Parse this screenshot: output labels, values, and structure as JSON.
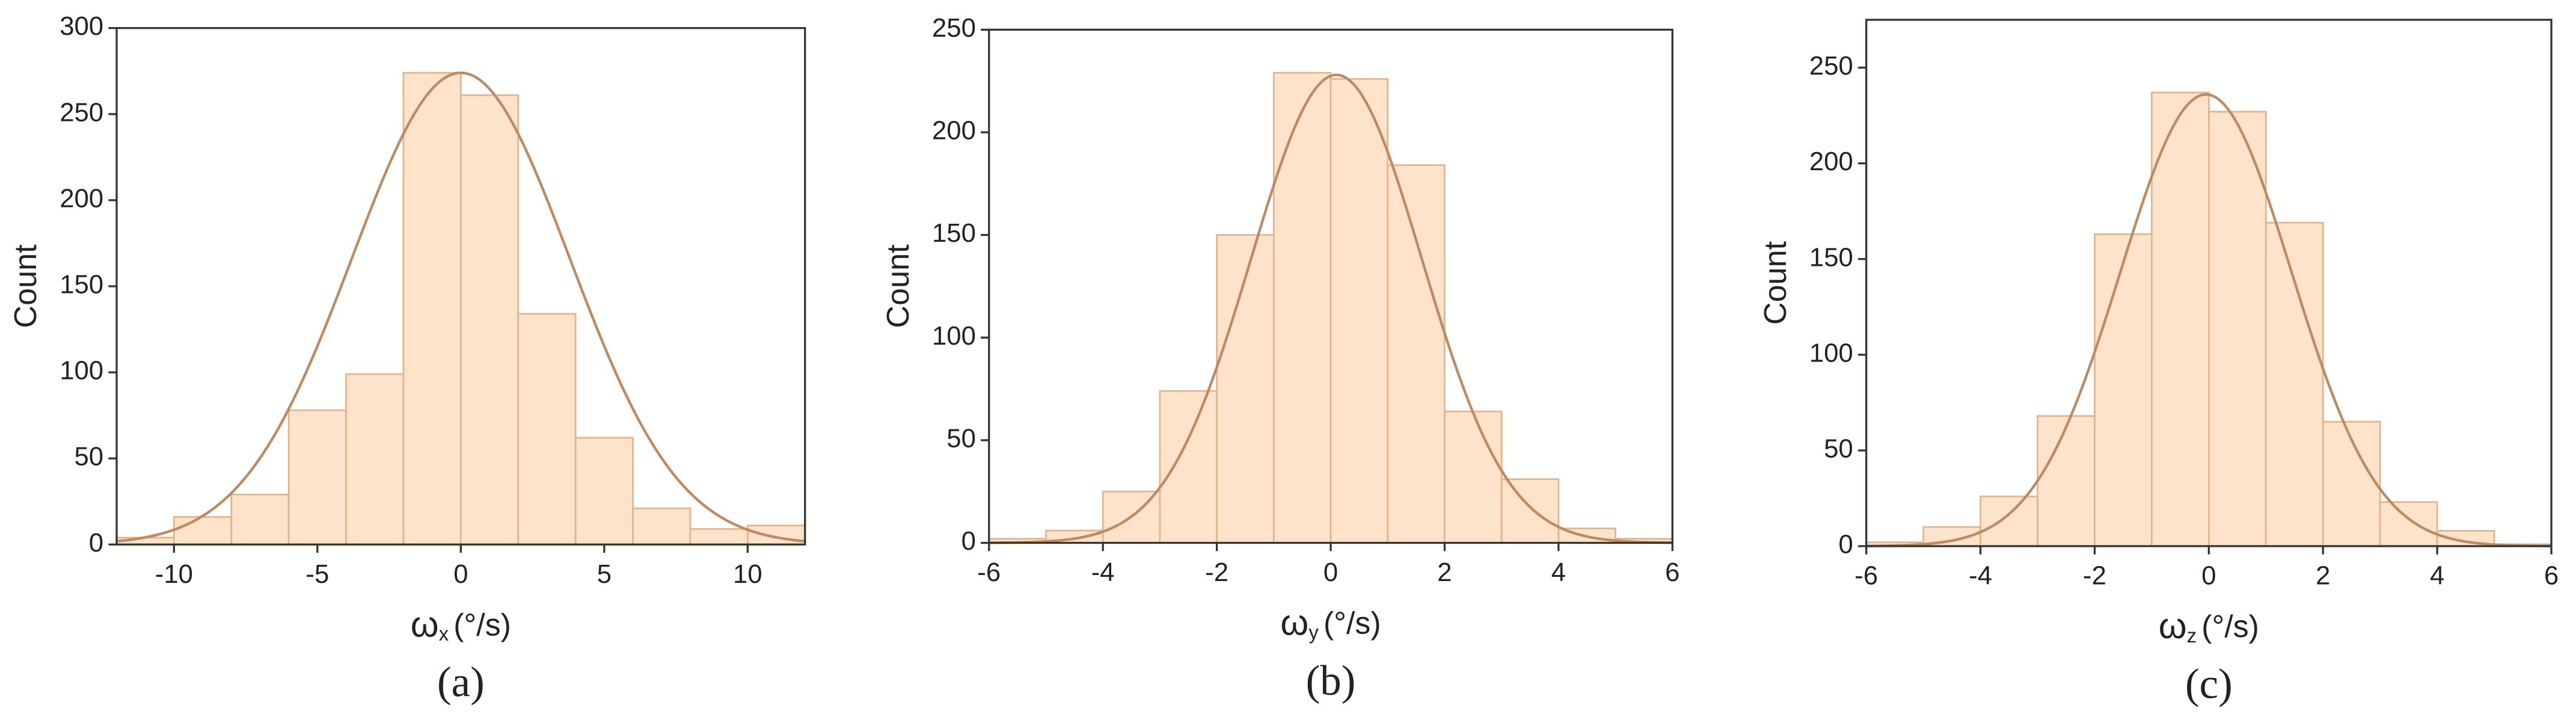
{
  "chart_data": [
    {
      "type": "histogram",
      "caption": "(a)",
      "y_label": "Count",
      "x_label": "ω",
      "x_label_sub": "x",
      "x_label_unit": "(°/s)",
      "bins": [
        -12,
        -10,
        -8,
        -6,
        -4,
        -2,
        0,
        2,
        4,
        6,
        8,
        10,
        12
      ],
      "values": [
        4,
        16,
        29,
        78,
        99,
        274,
        261,
        134,
        62,
        21,
        9,
        11
      ],
      "color": "#fde3c9",
      "edge_color": "#e3b48c",
      "fit": {
        "type": "gaussian",
        "mean": 0,
        "sd": 3.8,
        "peak": 274,
        "color": "#c08a60"
      },
      "xlim": [
        -12,
        12
      ],
      "xticks": [
        -10,
        -5,
        0,
        5,
        10
      ],
      "ylim": [
        0,
        300
      ],
      "yticks": [
        0,
        50,
        100,
        150,
        200,
        250,
        300
      ]
    },
    {
      "type": "histogram",
      "caption": "(b)",
      "y_label": "Count",
      "x_label": "ω",
      "x_label_sub": "y",
      "x_label_unit": "(°/s)",
      "bins": [
        -6,
        -5,
        -4,
        -3,
        -2,
        -1,
        0,
        1,
        2,
        3,
        4,
        5,
        6
      ],
      "values": [
        2,
        6,
        25,
        74,
        150,
        229,
        226,
        184,
        64,
        31,
        7,
        2
      ],
      "color": "#fde3c9",
      "edge_color": "#e3b48c",
      "fit": {
        "type": "gaussian",
        "mean": 0.1,
        "sd": 1.5,
        "peak": 228,
        "color": "#c08a60"
      },
      "xlim": [
        -6,
        6
      ],
      "xticks": [
        -6,
        -4,
        -2,
        0,
        2,
        4,
        6
      ],
      "ylim": [
        0,
        250
      ],
      "yticks": [
        0,
        50,
        100,
        150,
        200,
        250
      ]
    },
    {
      "type": "histogram",
      "caption": "(c)",
      "y_label": "Count",
      "x_label": "ω",
      "x_label_sub": "z",
      "x_label_unit": "(°/s)",
      "bins": [
        -6,
        -5,
        -4,
        -3,
        -2,
        -1,
        0,
        1,
        2,
        3,
        4,
        5,
        6
      ],
      "values": [
        2,
        10,
        26,
        68,
        163,
        237,
        227,
        169,
        65,
        23,
        8,
        1
      ],
      "color": "#fde3c9",
      "edge_color": "#e3b48c",
      "fit": {
        "type": "gaussian",
        "mean": -0.05,
        "sd": 1.5,
        "peak": 236,
        "color": "#c08a60"
      },
      "xlim": [
        -6,
        6
      ],
      "xticks": [
        -6,
        -4,
        -2,
        0,
        2,
        4,
        6
      ],
      "ylim": [
        0,
        275
      ],
      "yticks": [
        0,
        50,
        100,
        150,
        200,
        250
      ]
    }
  ]
}
